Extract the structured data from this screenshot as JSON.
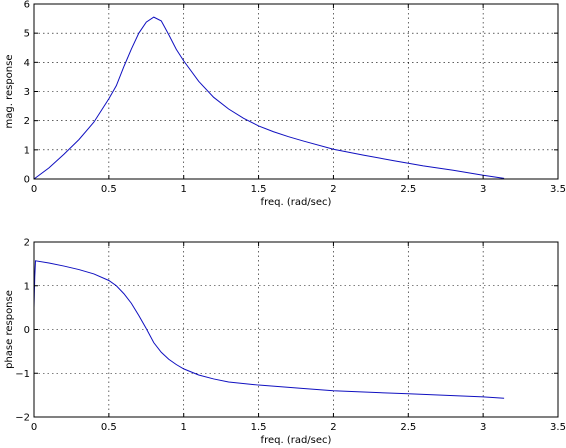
{
  "chart_data": [
    {
      "type": "line",
      "xlabel": "freq. (rad/sec)",
      "ylabel": "mag. response",
      "xlim": [
        0,
        3.5
      ],
      "ylim": [
        0,
        6
      ],
      "xticks": [
        "0",
        "0.5",
        "1",
        "1.5",
        "2",
        "2.5",
        "3",
        "3.5"
      ],
      "yticks": [
        "0",
        "1",
        "2",
        "3",
        "4",
        "5",
        "6"
      ],
      "grid": true,
      "series": [
        {
          "color": "#1010c0",
          "x": [
            0,
            0.1,
            0.2,
            0.3,
            0.4,
            0.5,
            0.55,
            0.6,
            0.65,
            0.7,
            0.75,
            0.8,
            0.85,
            0.9,
            0.95,
            1.0,
            1.1,
            1.2,
            1.3,
            1.4,
            1.5,
            1.6,
            1.7,
            1.8,
            2.0,
            2.2,
            2.4,
            2.6,
            2.8,
            3.0,
            3.14
          ],
          "y": [
            0,
            0.38,
            0.85,
            1.35,
            1.95,
            2.75,
            3.2,
            3.85,
            4.45,
            5.0,
            5.38,
            5.55,
            5.42,
            4.95,
            4.45,
            4.05,
            3.35,
            2.8,
            2.4,
            2.08,
            1.82,
            1.62,
            1.45,
            1.3,
            1.02,
            0.82,
            0.63,
            0.45,
            0.3,
            0.13,
            0.02
          ]
        }
      ]
    },
    {
      "type": "line",
      "xlabel": "freq. (rad/sec)",
      "ylabel": "phase response",
      "xlim": [
        0,
        3.5
      ],
      "ylim": [
        -2,
        2
      ],
      "xticks": [
        "0",
        "0.5",
        "1",
        "1.5",
        "2",
        "2.5",
        "3",
        "3.5"
      ],
      "yticks": [
        "−2",
        "−1",
        "0",
        "1",
        "2"
      ],
      "grid": true,
      "series": [
        {
          "color": "#1010c0",
          "x": [
            0,
            0.005,
            0.01,
            0.1,
            0.2,
            0.3,
            0.4,
            0.5,
            0.55,
            0.6,
            0.65,
            0.7,
            0.75,
            0.8,
            0.85,
            0.9,
            0.95,
            1.0,
            1.1,
            1.2,
            1.3,
            1.5,
            1.8,
            2.0,
            2.5,
            3.0,
            3.14
          ],
          "y": [
            0.5,
            1.2,
            1.57,
            1.52,
            1.45,
            1.37,
            1.27,
            1.12,
            1.0,
            0.82,
            0.6,
            0.32,
            0.02,
            -0.3,
            -0.52,
            -0.68,
            -0.8,
            -0.9,
            -1.04,
            -1.13,
            -1.2,
            -1.27,
            -1.35,
            -1.4,
            -1.47,
            -1.54,
            -1.57
          ]
        }
      ]
    }
  ]
}
